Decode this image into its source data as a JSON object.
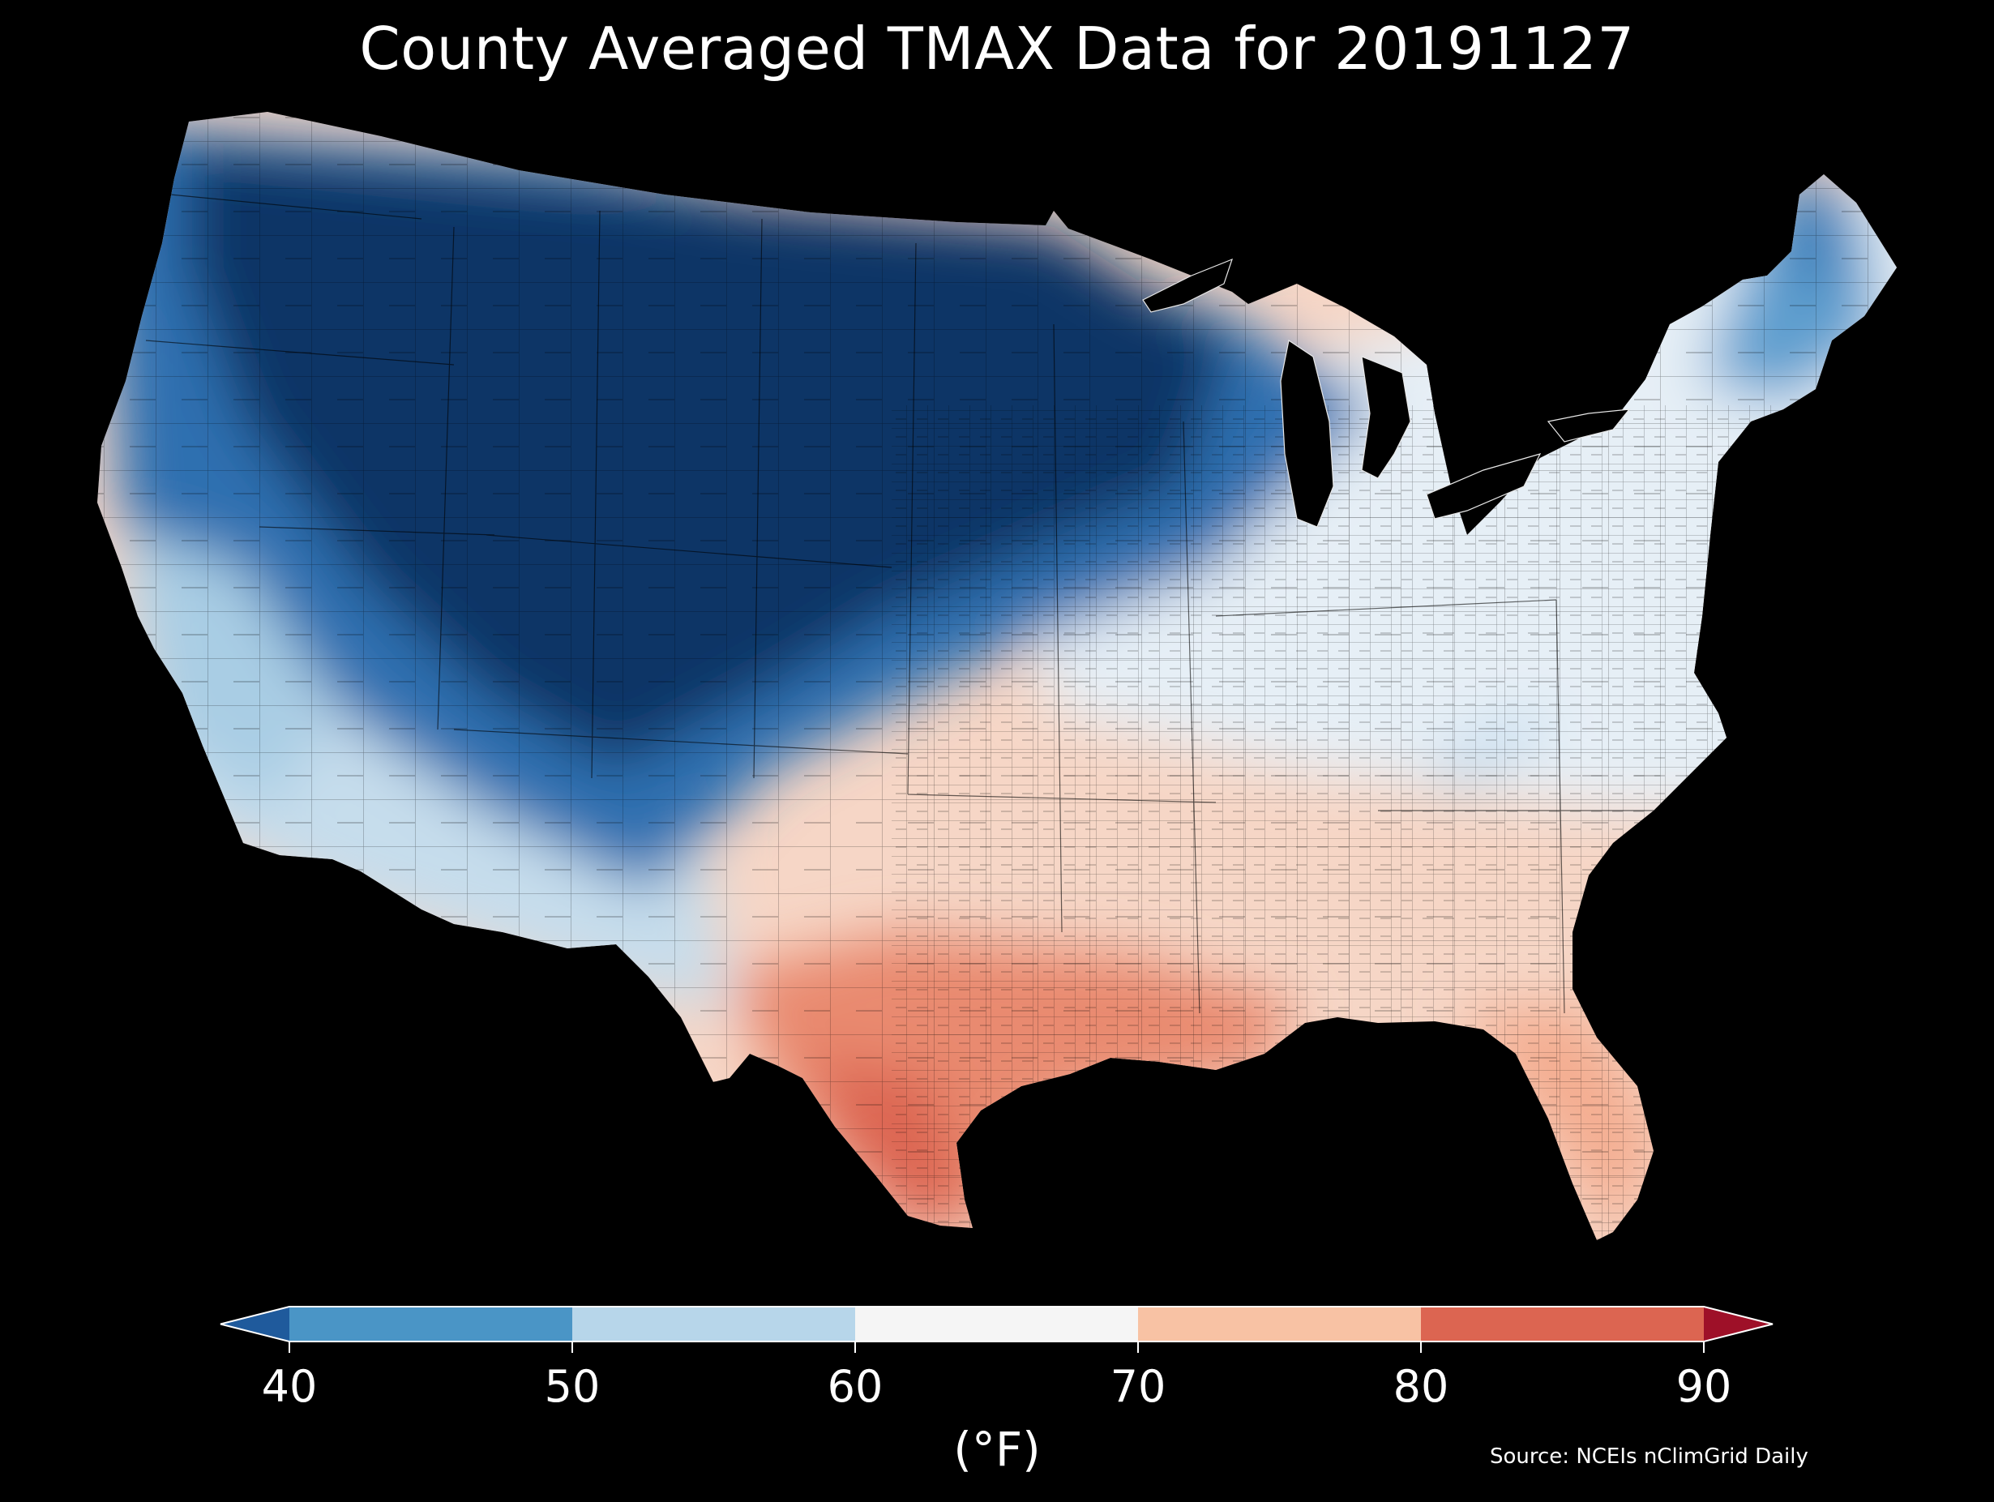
{
  "title": "County Averaged TMAX Data for 20191127",
  "source": "Source: NCEIs nClimGrid Daily",
  "colorbar": {
    "label": "(°F)",
    "ticks": [
      "40",
      "50",
      "60",
      "70",
      "80",
      "90"
    ],
    "tick_values": [
      40,
      50,
      60,
      70,
      80,
      90
    ],
    "extend": "both",
    "bins": [
      {
        "from": 30,
        "to": 40,
        "color": "#1f5a9c",
        "role": "under"
      },
      {
        "from": 40,
        "to": 50,
        "color": "#4a95c6"
      },
      {
        "from": 50,
        "to": 60,
        "color": "#b7d6ea"
      },
      {
        "from": 60,
        "to": 70,
        "color": "#f5f5f5"
      },
      {
        "from": 70,
        "to": 80,
        "color": "#f8c2a4"
      },
      {
        "from": 80,
        "to": 90,
        "color": "#dc6551"
      },
      {
        "from": 90,
        "to": 100,
        "color": "#9e1028",
        "role": "over"
      }
    ]
  },
  "map": {
    "region": "contiguous-united-states",
    "units": "county",
    "variable": "TMAX",
    "background_color": "#000000",
    "zones": [
      {
        "name": "northern-plains-rockies",
        "range": "below 40",
        "color": "#0b3467"
      },
      {
        "name": "pacific-northwest-coast",
        "range": "40-50",
        "color": "#2d6eb0"
      },
      {
        "name": "california-southwest",
        "range": "50-60",
        "color": "#b7d6ea"
      },
      {
        "name": "northeast-ohio-valley",
        "range": "60-70",
        "color": "#e8f1f8"
      },
      {
        "name": "southeast-texas-oklahoma",
        "range": "70-80",
        "color": "#f8c2a4"
      },
      {
        "name": "south-texas-gulf-coast",
        "range": "80-90",
        "color": "#dc6551"
      }
    ]
  }
}
